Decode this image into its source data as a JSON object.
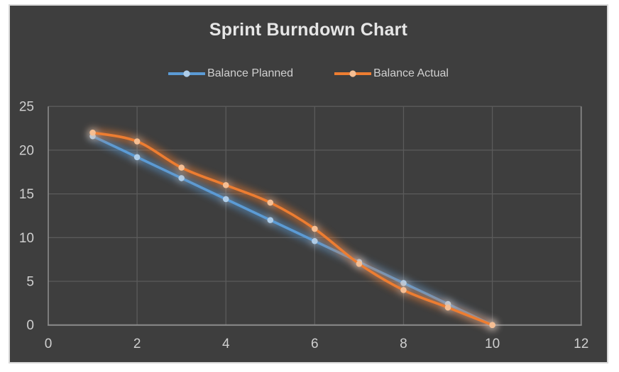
{
  "chart_data": {
    "type": "line",
    "title": "Sprint Burndown Chart",
    "x": [
      1,
      2,
      3,
      4,
      5,
      6,
      7,
      8,
      9,
      10
    ],
    "series": [
      {
        "name": "Balance Planned",
        "values": [
          21.6,
          19.2,
          16.8,
          14.4,
          12.0,
          9.6,
          7.2,
          4.8,
          2.4,
          0
        ],
        "color": "#5B9BD5",
        "marker_color": "#AECDE9"
      },
      {
        "name": "Balance Actual",
        "values": [
          22,
          21,
          18,
          16,
          14,
          11,
          7,
          4,
          2,
          0
        ],
        "color": "#ED7D31",
        "marker_color": "#F5BE93"
      }
    ],
    "xlabel": "",
    "ylabel": "",
    "xlim": [
      0,
      12
    ],
    "ylim": [
      0,
      25
    ],
    "x_ticks": [
      0,
      2,
      4,
      6,
      8,
      10,
      12
    ],
    "y_ticks": [
      0,
      5,
      10,
      15,
      20,
      25
    ],
    "grid": true,
    "smooth": true,
    "legend_position": "top-center",
    "line_glow": true,
    "colors": {
      "chart_background": "#3E3E3E",
      "chart_border": "#D8D8D8",
      "page_background": "#FFFFFF",
      "gridline": "#5B5B5B",
      "axis_line": "#8C8C8C",
      "tick_text": "#CFCFCF",
      "title_text": "#E6E6E6",
      "legend_text": "#D0D0D0"
    }
  }
}
